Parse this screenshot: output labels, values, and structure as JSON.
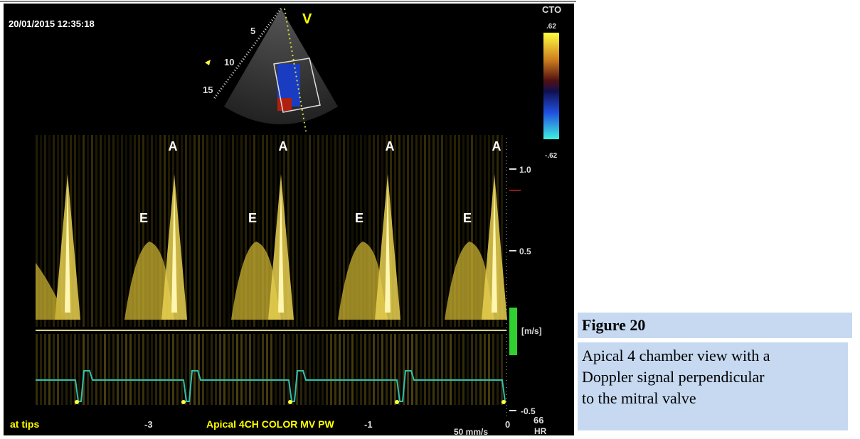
{
  "image": {
    "timestamp": "20/01/2015 12:35:18",
    "sector_label": "V",
    "depth_labels": [
      "5",
      "10",
      "15"
    ],
    "color_bar": {
      "title": "CTO",
      "max": ".62",
      "min": "-.62"
    },
    "a_labels": [
      "A",
      "A",
      "A",
      "A"
    ],
    "e_labels": [
      "E",
      "E",
      "E",
      "E"
    ],
    "velocity_scale": [
      "1.0",
      "0.5",
      "[m/s]",
      "-0.5"
    ],
    "time_scale": [
      "-3",
      "-1",
      "0"
    ],
    "footer": {
      "left": "at tips",
      "center": "Apical 4CH COLOR MV PW",
      "sweep": "50 mm/s",
      "hr_value": "66",
      "hr_label": "HR"
    }
  },
  "figure": {
    "label": "Figure 20",
    "caption_lines": [
      "Apical 4 chamber view with a",
      "Doppler signal perpendicular",
      "to the mitral valve"
    ]
  }
}
